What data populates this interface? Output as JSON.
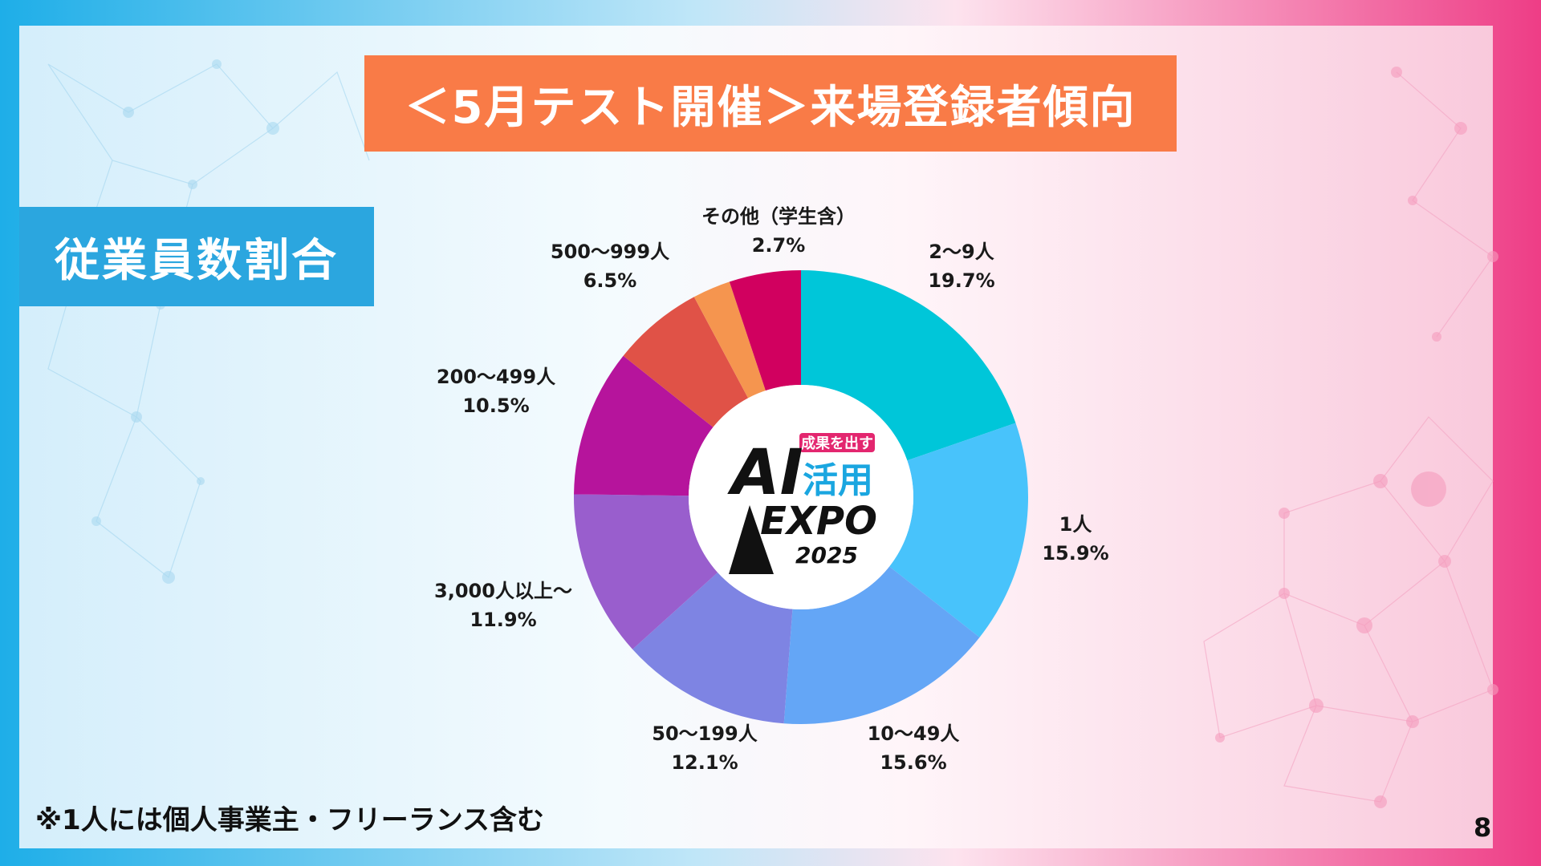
{
  "title": "＜5月テスト開催＞来場登録者傾向",
  "section_label": "従業員数割合",
  "footnote": "※1人には個人事業主・フリーランス含む",
  "page_number": "8",
  "logo": {
    "tagline": "成果を出す",
    "line1": "AI",
    "line2": "活用",
    "line3": "EXPO",
    "year": "2025"
  },
  "colors": {
    "title_bg": "#f97b47",
    "section_bg": "#2ba6df"
  },
  "chart_data": {
    "type": "pie",
    "donut": true,
    "title": "",
    "start": "top",
    "direction": "clockwise",
    "slices": [
      {
        "label": "2～9人",
        "value": 19.7,
        "value_label": "19.7%",
        "color": "#00c6d9"
      },
      {
        "label": "1人",
        "value": 15.9,
        "value_label": "15.9%",
        "color": "#48c3fb"
      },
      {
        "label": "10～49人",
        "value": 15.6,
        "value_label": "15.6%",
        "color": "#64a6f6"
      },
      {
        "label": "50～199人",
        "value": 12.1,
        "value_label": "12.1%",
        "color": "#7e84e3"
      },
      {
        "label": "3,000人以上～",
        "value": 11.9,
        "value_label": "11.9%",
        "color": "#995ecd"
      },
      {
        "label": "200～499人",
        "value": 10.5,
        "value_label": "10.5%",
        "color": "#b6149c"
      },
      {
        "label": "500～999人",
        "value": 6.5,
        "value_label": "6.5%",
        "color": "#e05247"
      },
      {
        "label": "その他（学生含）",
        "value": 2.7,
        "value_label": "2.7%",
        "color": "#f5954f"
      },
      {
        "label": "",
        "value": 5.1,
        "value_label": "",
        "color": "#d1005f"
      }
    ]
  }
}
